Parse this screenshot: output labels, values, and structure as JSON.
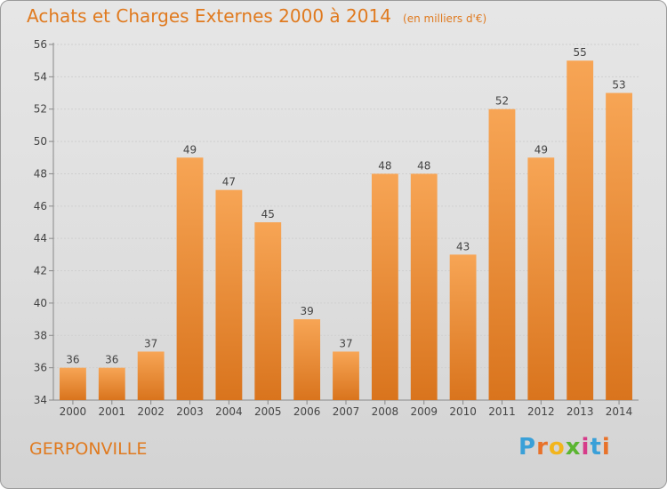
{
  "title": "Achats et Charges Externes 2000 à 2014",
  "unit_note": "(en milliers d'€)",
  "city": "GERPONVILLE",
  "logo_text": "Proxiti",
  "colors": {
    "bar_light": "#f7a555",
    "bar_dark": "#d9741d",
    "title": "#e07a1f",
    "grid": "#cfcfcf",
    "axis_text": "#444444"
  },
  "chart_data": {
    "type": "bar",
    "title": "Achats et Charges Externes 2000 à 2014",
    "subtitle": "(en milliers d'€)",
    "categories": [
      "2000",
      "2001",
      "2002",
      "2003",
      "2004",
      "2005",
      "2006",
      "2007",
      "2008",
      "2009",
      "2010",
      "2011",
      "2012",
      "2013",
      "2014"
    ],
    "values": [
      36,
      36,
      37,
      49,
      47,
      45,
      39,
      37,
      48,
      48,
      43,
      52,
      49,
      55,
      53
    ],
    "ylim": [
      34,
      56
    ],
    "yticks": [
      34,
      36,
      38,
      40,
      42,
      44,
      46,
      48,
      50,
      52,
      54,
      56
    ],
    "grid": true,
    "data_labels": true
  }
}
